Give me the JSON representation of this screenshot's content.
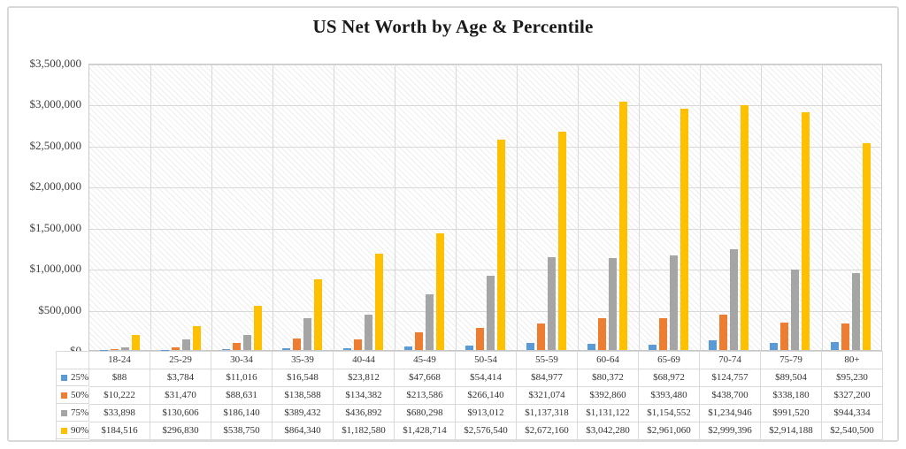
{
  "title": "US Net Worth by Age & Percentile",
  "colors": {
    "series_25": "#5B9BD5",
    "series_50": "#ED7D31",
    "series_75": "#A5A5A5",
    "series_90": "#FFC000",
    "gridline": "#d9d9d9",
    "card_border": "#d9d9d9",
    "text": "#262626"
  },
  "chart_data": {
    "type": "bar",
    "title": "US Net Worth by Age & Percentile",
    "xlabel": "",
    "ylabel": "",
    "ylim": [
      0,
      3500000
    ],
    "ytick_step": 500000,
    "ytick_labels_top_down": [
      "$3,500,000",
      "$3,000,000",
      "$2,500,000",
      "$2,000,000",
      "$1,500,000",
      "$1,000,000",
      "$500,000",
      "$0"
    ],
    "grid": true,
    "plot_background": "diagonal-hatch",
    "legend_position": "data-table-left",
    "categories": [
      "18-24",
      "25-29",
      "30-34",
      "35-39",
      "40-44",
      "45-49",
      "50-54",
      "55-59",
      "60-64",
      "65-69",
      "70-74",
      "75-79",
      "80+"
    ],
    "series": [
      {
        "name": "25%",
        "color": "#5B9BD5",
        "values": [
          88,
          3784,
          11016,
          16548,
          23812,
          47668,
          54414,
          84977,
          80372,
          68972,
          124757,
          89504,
          95230
        ],
        "formatted": [
          "$88",
          "$3,784",
          "$11,016",
          "$16,548",
          "$23,812",
          "$47,668",
          "$54,414",
          "$84,977",
          "$80,372",
          "$68,972",
          "$124,757",
          "$89,504",
          "$95,230"
        ]
      },
      {
        "name": "50%",
        "color": "#ED7D31",
        "values": [
          10222,
          31470,
          88631,
          138588,
          134382,
          213586,
          266140,
          321074,
          392860,
          393480,
          438700,
          338180,
          327200
        ],
        "formatted": [
          "$10,222",
          "$31,470",
          "$88,631",
          "$138,588",
          "$134,382",
          "$213,586",
          "$266,140",
          "$321,074",
          "$392,860",
          "$393,480",
          "$438,700",
          "$338,180",
          "$327,200"
        ]
      },
      {
        "name": "75%",
        "color": "#A5A5A5",
        "values": [
          33898,
          130606,
          186140,
          389432,
          436892,
          680298,
          913012,
          1137318,
          1131122,
          1154552,
          1234946,
          991520,
          944334
        ],
        "formatted": [
          "$33,898",
          "$130,606",
          "$186,140",
          "$389,432",
          "$436,892",
          "$680,298",
          "$913,012",
          "$1,137,318",
          "$1,131,122",
          "$1,154,552",
          "$1,234,946",
          "$991,520",
          "$944,334"
        ]
      },
      {
        "name": "90%",
        "color": "#FFC000",
        "values": [
          184516,
          296830,
          538750,
          864340,
          1182580,
          1428714,
          2576540,
          2672160,
          3042280,
          2961060,
          2999396,
          2914188,
          2540500
        ],
        "formatted": [
          "$184,516",
          "$296,830",
          "$538,750",
          "$864,340",
          "$1,182,580",
          "$1,428,714",
          "$2,576,540",
          "$2,672,160",
          "$3,042,280",
          "$2,961,060",
          "$2,999,396",
          "$2,914,188",
          "$2,540,500"
        ]
      }
    ]
  }
}
